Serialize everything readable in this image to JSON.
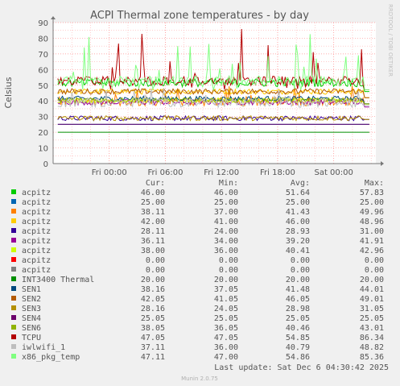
{
  "chart_data": {
    "type": "line",
    "title": "ACPI Thermal zone temperatures - by day",
    "ylabel": "Celsius",
    "side_label": "RRDTOOL / TOBI OETIKER",
    "ylim": [
      0,
      90
    ],
    "y_ticks": [
      0,
      10,
      20,
      30,
      40,
      50,
      60,
      70,
      80,
      90
    ],
    "x_ticks": [
      "Fri 00:00",
      "Fri 06:00",
      "Fri 12:00",
      "Fri 18:00",
      "Sat 00:00"
    ],
    "x_range_hours": [
      -6,
      28.5
    ],
    "x_tick_hours": [
      0,
      6,
      12,
      18,
      24
    ],
    "grid": true,
    "columns": [
      "Cur:",
      "Min:",
      "Avg:",
      "Max:"
    ],
    "series": [
      {
        "name": "acpitz",
        "color": "#00cc00",
        "cur": "46.00",
        "min": "46.00",
        "avg": "51.64",
        "max": "57.83"
      },
      {
        "name": "acpitz",
        "color": "#0066b3",
        "cur": "25.00",
        "min": "25.00",
        "avg": "25.00",
        "max": "25.00"
      },
      {
        "name": "acpitz",
        "color": "#ff8000",
        "cur": "38.11",
        "min": "37.00",
        "avg": "41.43",
        "max": "49.96"
      },
      {
        "name": "acpitz",
        "color": "#ffcc00",
        "cur": "42.00",
        "min": "41.00",
        "avg": "46.00",
        "max": "48.96"
      },
      {
        "name": "acpitz",
        "color": "#330099",
        "cur": "28.11",
        "min": "24.00",
        "avg": "28.93",
        "max": "31.00"
      },
      {
        "name": "acpitz",
        "color": "#990099",
        "cur": "36.11",
        "min": "34.00",
        "avg": "39.20",
        "max": "41.91"
      },
      {
        "name": "acpitz",
        "color": "#ccff00",
        "cur": "38.00",
        "min": "36.00",
        "avg": "40.41",
        "max": "42.96"
      },
      {
        "name": "acpitz",
        "color": "#ff0000",
        "cur": "0.00",
        "min": "0.00",
        "avg": "0.00",
        "max": "0.00"
      },
      {
        "name": "acpitz",
        "color": "#808080",
        "cur": "0.00",
        "min": "0.00",
        "avg": "0.00",
        "max": "0.00"
      },
      {
        "name": "INT3400 Thermal",
        "color": "#008f00",
        "cur": "20.00",
        "min": "20.00",
        "avg": "20.00",
        "max": "20.00"
      },
      {
        "name": "SEN1",
        "color": "#00487d",
        "cur": "38.16",
        "min": "37.05",
        "avg": "41.48",
        "max": "44.01"
      },
      {
        "name": "SEN2",
        "color": "#b35a00",
        "cur": "42.05",
        "min": "41.05",
        "avg": "46.05",
        "max": "49.01"
      },
      {
        "name": "SEN3",
        "color": "#b38f00",
        "cur": "28.16",
        "min": "24.05",
        "avg": "28.98",
        "max": "31.05"
      },
      {
        "name": "SEN4",
        "color": "#6b006b",
        "cur": "25.05",
        "min": "25.05",
        "avg": "25.05",
        "max": "25.05"
      },
      {
        "name": "SEN6",
        "color": "#8fb300",
        "cur": "38.05",
        "min": "36.05",
        "avg": "40.46",
        "max": "43.01"
      },
      {
        "name": "TCPU",
        "color": "#b30000",
        "cur": "47.05",
        "min": "47.05",
        "avg": "54.85",
        "max": "86.34"
      },
      {
        "name": "iwlwifi_1",
        "color": "#bebebe",
        "cur": "37.11",
        "min": "36.00",
        "avg": "40.79",
        "max": "48.82"
      },
      {
        "name": "x86_pkg_temp",
        "color": "#80ff80",
        "cur": "47.11",
        "min": "47.00",
        "avg": "54.86",
        "max": "85.36"
      }
    ],
    "last_update": "Last update: Sat Dec  6 04:30:42 2025",
    "footer": "Munin 2.0.75"
  }
}
